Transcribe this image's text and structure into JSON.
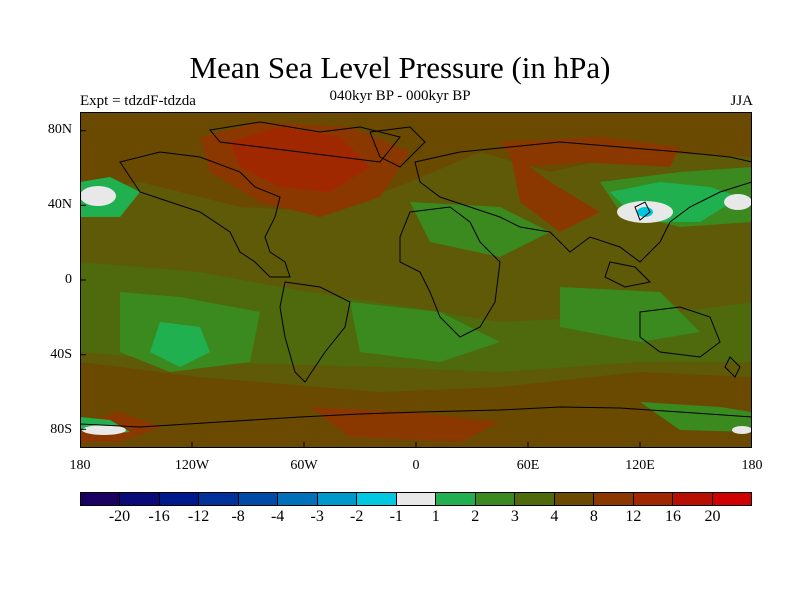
{
  "title": "Mean Sea Level Pressure (in hPa)",
  "subtitle": "040kyr BP - 000kyr BP",
  "left_label": "Expt = tdzdF-tdzda",
  "right_label": "JJA",
  "lat_labels": [
    "80N",
    "40N",
    "0",
    "40S",
    "80S"
  ],
  "lon_labels": [
    "180",
    "120W",
    "60W",
    "0",
    "60E",
    "120E",
    "180"
  ],
  "colorbar": {
    "labels": [
      "-20",
      "-16",
      "-12",
      "-8",
      "-4",
      "-3",
      "-2",
      "-1",
      "1",
      "2",
      "3",
      "4",
      "8",
      "12",
      "16",
      "20"
    ],
    "colors": [
      "#1a0060",
      "#0a0a78",
      "#001a8c",
      "#00329a",
      "#004aa8",
      "#0070b8",
      "#0098c8",
      "#00c8e0",
      "#e8e8e8",
      "#20b050",
      "#3a8a20",
      "#4e6a0c",
      "#6a4a00",
      "#8a3800",
      "#a02800",
      "#b81000",
      "#d00000"
    ]
  },
  "map": {
    "base_color": "#5e5a08",
    "colors": {
      "pos_4_8": "#6a4a00",
      "pos_8_12": "#8a3800",
      "pos_12_16": "#a02800",
      "pos_3_4": "#4e6a0c",
      "pos_2_3": "#3a8a20",
      "pos_1_2": "#20b050",
      "neutral": "#e8e8e8",
      "neg": "#00c8e0"
    }
  }
}
